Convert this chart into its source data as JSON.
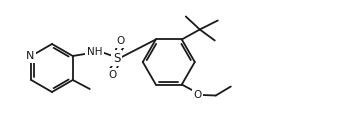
{
  "bg_color": "#ffffff",
  "line_color": "#1a1a1a",
  "line_width": 1.3,
  "font_size": 7.5,
  "figsize": [
    3.54,
    1.32
  ],
  "dpi": 100,
  "xlim": [
    0,
    354
  ],
  "ylim": [
    0,
    132
  ]
}
